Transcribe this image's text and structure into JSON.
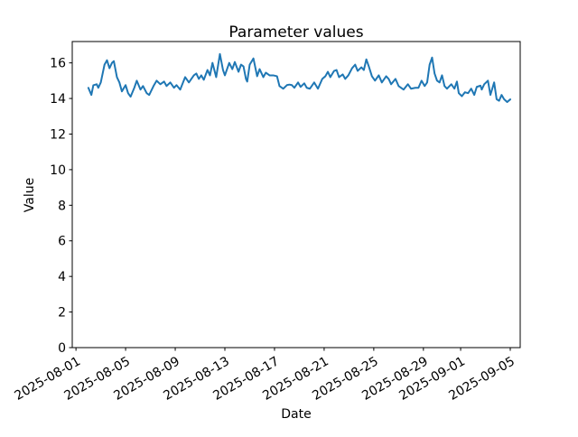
{
  "window": {
    "background_color": "#ffffff"
  },
  "chart_data": {
    "type": "line",
    "title": "Parameter values",
    "xlabel": "Date",
    "ylabel": "Value",
    "grid": false,
    "legend": "none",
    "line_color": "#1f77b4",
    "axis_color": "#000000",
    "x_unit": "days since 2025-08-01",
    "xlim": [
      -0.3,
      35.8
    ],
    "ylim": [
      0,
      17.2
    ],
    "xtick_pos": [
      0,
      4,
      8,
      12,
      16,
      20,
      24,
      28,
      31,
      35
    ],
    "xtick_labels": [
      "2025-08-01",
      "2025-08-05",
      "2025-08-09",
      "2025-08-13",
      "2025-08-17",
      "2025-08-21",
      "2025-08-25",
      "2025-08-29",
      "2025-09-01",
      "2025-09-05"
    ],
    "ytick_pos": [
      0,
      2,
      4,
      6,
      8,
      10,
      12,
      14,
      16
    ],
    "ytick_labels": [
      "0",
      "2",
      "4",
      "6",
      "8",
      "10",
      "12",
      "14",
      "16"
    ],
    "series": [
      {
        "name": "Parameter",
        "x": [
          1.0,
          1.24,
          1.4,
          1.67,
          1.8,
          2.0,
          2.3,
          2.5,
          2.7,
          2.9,
          3.05,
          3.3,
          3.5,
          3.7,
          4.0,
          4.2,
          4.4,
          4.7,
          4.9,
          5.2,
          5.4,
          5.7,
          5.9,
          6.25,
          6.5,
          6.8,
          7.1,
          7.3,
          7.6,
          7.9,
          8.1,
          8.4,
          8.8,
          9.1,
          9.5,
          9.7,
          9.9,
          10.1,
          10.3,
          10.6,
          10.8,
          11.0,
          11.3,
          11.6,
          11.85,
          12.0,
          12.35,
          12.6,
          12.8,
          13.1,
          13.3,
          13.5,
          13.7,
          13.8,
          14.0,
          14.3,
          14.6,
          14.8,
          15.1,
          15.3,
          15.6,
          15.9,
          16.2,
          16.4,
          16.7,
          17.0,
          17.2,
          17.4,
          17.6,
          17.9,
          18.1,
          18.4,
          18.6,
          18.85,
          19.2,
          19.5,
          19.85,
          20.1,
          20.3,
          20.5,
          20.8,
          21.0,
          21.2,
          21.5,
          21.7,
          21.95,
          22.25,
          22.5,
          22.7,
          23.0,
          23.2,
          23.4,
          23.6,
          23.85,
          24.1,
          24.4,
          24.65,
          25.0,
          25.2,
          25.4,
          25.75,
          26.0,
          26.4,
          26.75,
          27.0,
          27.35,
          27.6,
          27.85,
          28.1,
          28.3,
          28.5,
          28.7,
          28.9,
          29.1,
          29.3,
          29.5,
          29.7,
          29.9,
          30.25,
          30.5,
          30.7,
          30.85,
          31.1,
          31.35,
          31.6,
          31.85,
          32.1,
          32.3,
          32.6,
          32.7,
          32.9,
          33.2,
          33.4,
          33.7,
          33.9,
          34.1,
          34.3,
          34.5,
          34.75,
          35.0
        ],
        "y": [
          14.6,
          14.2,
          14.74,
          14.8,
          14.6,
          14.9,
          15.9,
          16.15,
          15.7,
          16.0,
          16.1,
          15.2,
          14.9,
          14.4,
          14.75,
          14.3,
          14.1,
          14.6,
          15.0,
          14.5,
          14.7,
          14.3,
          14.2,
          14.7,
          15.0,
          14.8,
          14.95,
          14.7,
          14.9,
          14.6,
          14.75,
          14.5,
          15.2,
          14.9,
          15.3,
          15.4,
          15.1,
          15.3,
          15.05,
          15.6,
          15.3,
          16.0,
          15.2,
          16.5,
          15.6,
          15.3,
          16.0,
          15.65,
          16.05,
          15.5,
          15.9,
          15.8,
          15.1,
          14.95,
          15.9,
          16.25,
          15.25,
          15.65,
          15.2,
          15.45,
          15.3,
          15.3,
          15.25,
          14.7,
          14.55,
          14.75,
          14.78,
          14.75,
          14.6,
          14.9,
          14.65,
          14.85,
          14.6,
          14.55,
          14.9,
          14.55,
          15.1,
          15.25,
          15.5,
          15.2,
          15.55,
          15.6,
          15.2,
          15.35,
          15.1,
          15.3,
          15.7,
          15.9,
          15.55,
          15.75,
          15.6,
          16.2,
          15.8,
          15.25,
          15.0,
          15.3,
          14.9,
          15.25,
          15.1,
          14.8,
          15.1,
          14.7,
          14.5,
          14.8,
          14.55,
          14.6,
          14.6,
          15.0,
          14.7,
          14.9,
          15.9,
          16.3,
          15.4,
          15.0,
          14.9,
          15.3,
          14.7,
          14.55,
          14.8,
          14.55,
          14.95,
          14.3,
          14.13,
          14.35,
          14.3,
          14.55,
          14.2,
          14.65,
          14.72,
          14.5,
          14.8,
          15.0,
          14.2,
          14.9,
          13.96,
          13.87,
          14.2,
          13.96,
          13.8,
          13.95
        ]
      }
    ]
  }
}
